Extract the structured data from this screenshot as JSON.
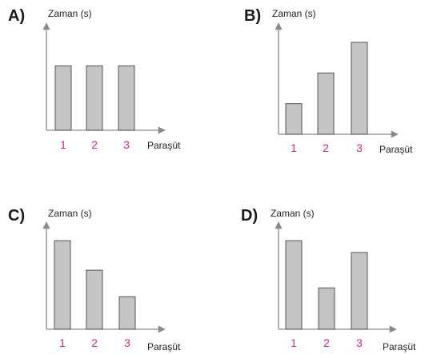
{
  "figure": {
    "colors": {
      "bar_fill": "#c4c4c4",
      "bar_stroke": "#555555",
      "axis": "#8a8a8a",
      "tick_label": "#e0218a",
      "text": "#222222"
    }
  },
  "chart_data": [
    {
      "type": "bar",
      "option_label": "A)",
      "ylabel": "Zaman (s)",
      "xlabel": "Paraşüt",
      "categories": [
        "1",
        "2",
        "3"
      ],
      "values": [
        2,
        2,
        2
      ],
      "ylim": [
        0,
        3.3
      ],
      "grid": false
    },
    {
      "type": "bar",
      "option_label": "B)",
      "ylabel": "Zaman (s)",
      "xlabel": "Paraşüt",
      "categories": [
        "1",
        "2",
        "3"
      ],
      "values": [
        1,
        2,
        3
      ],
      "ylim": [
        0,
        3.6
      ],
      "grid": false
    },
    {
      "type": "bar",
      "option_label": "C)",
      "ylabel": "Zaman (s)",
      "xlabel": "Paraşüt",
      "categories": [
        "1",
        "2",
        "3"
      ],
      "values": [
        3,
        2,
        1.1
      ],
      "ylim": [
        0,
        3.6
      ],
      "grid": false
    },
    {
      "type": "bar",
      "option_label": "D)",
      "ylabel": "Zaman (s)",
      "xlabel": "Paraşüt",
      "categories": [
        "1",
        "2",
        "3"
      ],
      "values": [
        3,
        1.4,
        2.6
      ],
      "ylim": [
        0,
        3.6
      ],
      "grid": false
    }
  ]
}
